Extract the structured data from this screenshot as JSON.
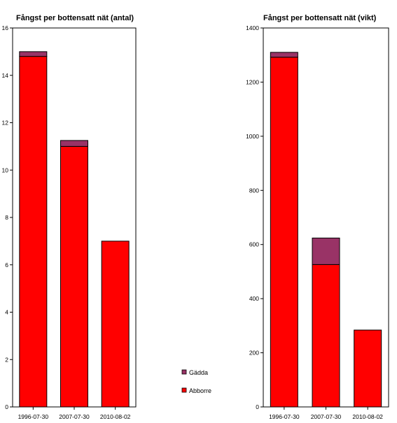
{
  "legend": [
    {
      "name": "Gädda",
      "color": "#993366"
    },
    {
      "name": "Abborre",
      "color": "#ff0000"
    }
  ],
  "chart_data": [
    {
      "type": "bar",
      "stacked": true,
      "title": "Fångst per bottensatt nät (antal)",
      "categories": [
        "1996-07-30",
        "2007-07-30",
        "2010-08-02"
      ],
      "series": [
        {
          "name": "Abborre",
          "values": [
            14.8,
            11.0,
            7.0
          ]
        },
        {
          "name": "Gädda",
          "values": [
            0.2,
            0.25,
            0
          ]
        }
      ],
      "ylim": [
        0,
        16
      ],
      "yticks": [
        0,
        2,
        4,
        6,
        8,
        10,
        12,
        14,
        16
      ],
      "grid": false
    },
    {
      "type": "bar",
      "stacked": true,
      "title": "Fångst per bottensatt nät (vikt)",
      "categories": [
        "1996-07-30",
        "2007-07-30",
        "2010-08-02"
      ],
      "series": [
        {
          "name": "Abborre",
          "values": [
            1292,
            526,
            284
          ]
        },
        {
          "name": "Gädda",
          "values": [
            18,
            98,
            0
          ]
        }
      ],
      "ylim": [
        0,
        1400
      ],
      "yticks": [
        0,
        200,
        400,
        600,
        800,
        1000,
        1200,
        1400
      ],
      "grid": false
    }
  ]
}
